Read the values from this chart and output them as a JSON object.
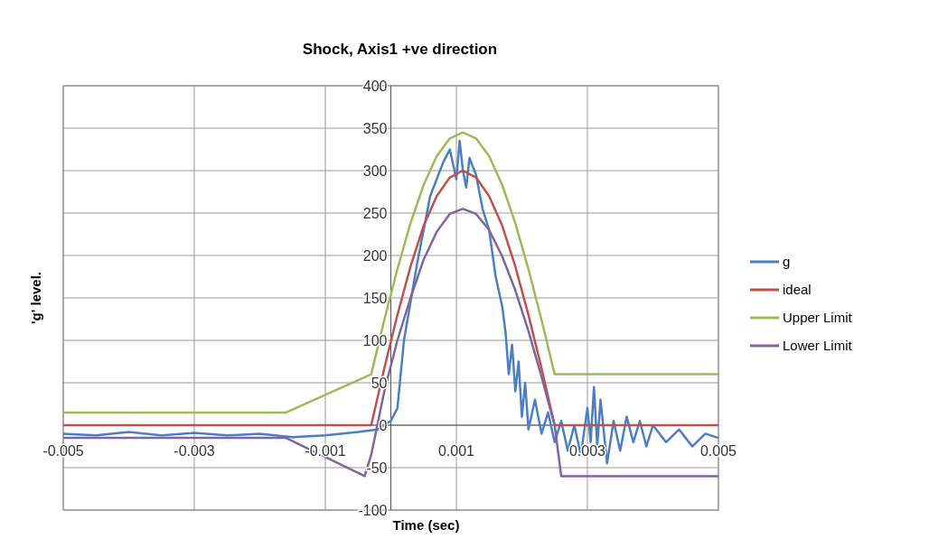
{
  "chart_data": {
    "type": "line",
    "title": "Shock, Axis1 +ve direction",
    "xlabel": "Time (sec)",
    "ylabel": "'g' level.",
    "xlim": [
      -0.005,
      0.005
    ],
    "xticks": [
      -0.005,
      -0.003,
      -0.001,
      0.001,
      0.003,
      0.005
    ],
    "ylim": [
      -100,
      400
    ],
    "yticks": [
      -100,
      -50,
      0,
      50,
      100,
      150,
      200,
      250,
      300,
      350,
      400
    ],
    "grid": true,
    "legend": "right",
    "marker": "none",
    "line_style": "solid",
    "series": [
      {
        "name": "g",
        "color": "#4a7fc1",
        "x": [
          -0.005,
          -0.0045,
          -0.004,
          -0.0035,
          -0.003,
          -0.0025,
          -0.002,
          -0.0015,
          -0.001,
          -0.0005,
          -0.0002,
          0,
          0.0001,
          0.0002,
          0.0004,
          0.0006,
          0.0008,
          0.0009,
          0.001,
          0.00105,
          0.0011,
          0.00115,
          0.0012,
          0.0013,
          0.0014,
          0.0015,
          0.0016,
          0.0017,
          0.00175,
          0.0018,
          0.00185,
          0.0019,
          0.00195,
          0.002,
          0.00205,
          0.0021,
          0.0022,
          0.0023,
          0.0024,
          0.0025,
          0.0026,
          0.0027,
          0.0028,
          0.0029,
          0.003,
          0.00305,
          0.0031,
          0.00315,
          0.0032,
          0.0033,
          0.0034,
          0.0035,
          0.0036,
          0.0037,
          0.0038,
          0.0039,
          0.004,
          0.0042,
          0.0044,
          0.0046,
          0.0048,
          0.005
        ],
        "values": [
          -10,
          -12,
          -8,
          -12,
          -9,
          -12,
          -10,
          -14,
          -12,
          -8,
          -5,
          5,
          20,
          100,
          190,
          270,
          310,
          325,
          290,
          335,
          300,
          280,
          315,
          295,
          255,
          230,
          175,
          140,
          110,
          60,
          95,
          40,
          75,
          10,
          50,
          -5,
          30,
          -10,
          15,
          -20,
          5,
          -30,
          0,
          -35,
          20,
          -20,
          45,
          -25,
          30,
          -45,
          5,
          -30,
          10,
          -20,
          5,
          -25,
          0,
          -20,
          -5,
          -25,
          -10,
          -15
        ]
      },
      {
        "name": "ideal",
        "color": "#c0504d",
        "x": [
          -0.005,
          -0.0003,
          -0.0001,
          0.0001,
          0.0003,
          0.0005,
          0.0007,
          0.0009,
          0.0011,
          0.0013,
          0.0015,
          0.0017,
          0.0019,
          0.0021,
          0.0023,
          0.0025,
          0.005
        ],
        "values": [
          0,
          0,
          67,
          130,
          187,
          235,
          270,
          292,
          300,
          292,
          270,
          235,
          187,
          130,
          67,
          0,
          0
        ]
      },
      {
        "name": "Upper Limit",
        "color": "#9bbb59",
        "x": [
          -0.005,
          -0.0016,
          -0.0003,
          -0.0001,
          0.0001,
          0.0003,
          0.0005,
          0.0007,
          0.0009,
          0.0011,
          0.0013,
          0.0015,
          0.0017,
          0.0019,
          0.0021,
          0.0023,
          0.0025,
          0.005
        ],
        "values": [
          15,
          15,
          60,
          124,
          184,
          238,
          283,
          317,
          338,
          345,
          338,
          317,
          283,
          238,
          184,
          124,
          60,
          60
        ]
      },
      {
        "name": "Lower Limit",
        "color": "#8064a2",
        "x": [
          -0.005,
          -0.0016,
          -0.0004,
          -0.0003,
          -0.0001,
          0.0001,
          0.0003,
          0.0005,
          0.0007,
          0.0009,
          0.0011,
          0.0013,
          0.0015,
          0.0017,
          0.0019,
          0.0021,
          0.0023,
          0.0025,
          0.0026,
          0.005
        ],
        "values": [
          -15,
          -15,
          -60,
          -35,
          40,
          100,
          150,
          195,
          228,
          249,
          255,
          249,
          230,
          199,
          159,
          111,
          57,
          0,
          -60,
          -60
        ]
      }
    ]
  }
}
